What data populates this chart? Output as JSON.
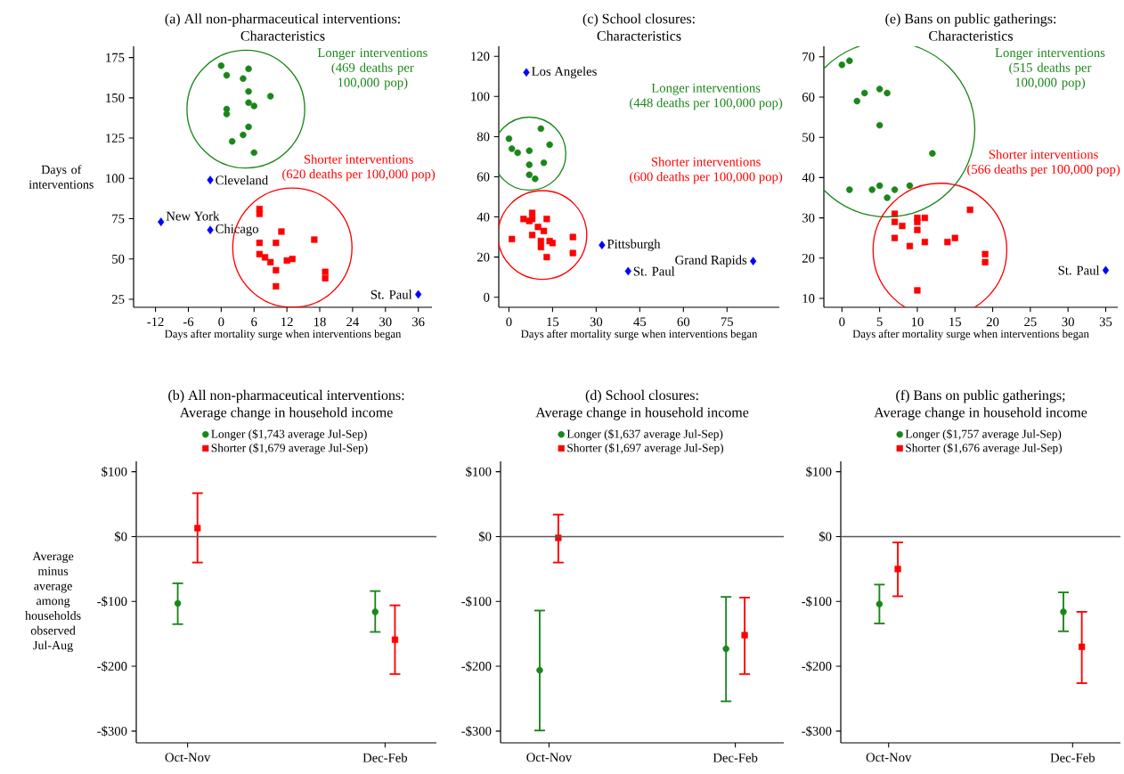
{
  "chart_data": [
    {
      "type": "scatter",
      "title": "(a) All non-pharmaceutical interventions:",
      "subtitle": "Characteristics",
      "xlabel": "Days after mortality surge when interventions began",
      "ylabel": "Days of interventions",
      "xlim": [
        -16,
        38.5
      ],
      "xticks": [
        -12,
        -6,
        0,
        6,
        12,
        18,
        24,
        30,
        36
      ],
      "ylim": [
        20,
        182
      ],
      "yticks": [
        25,
        50,
        75,
        100,
        125,
        150,
        175
      ],
      "series": [
        {
          "color": "#1a861a",
          "marker": "circle",
          "x": [
            0,
            5,
            1,
            4,
            5,
            9,
            5,
            6,
            1,
            1,
            5,
            4,
            2,
            6
          ],
          "values": [
            170,
            168,
            164,
            162,
            154,
            151,
            147,
            145,
            143,
            140,
            132,
            127,
            123,
            116
          ]
        },
        {
          "color": "#ff0000",
          "marker": "square",
          "x": [
            7,
            7,
            11,
            7,
            10,
            17,
            7,
            8,
            9,
            10,
            12,
            13,
            19,
            19,
            10
          ],
          "values": [
            81,
            78,
            67,
            60,
            60,
            62,
            53,
            51,
            48,
            43,
            49,
            50,
            42,
            38,
            33
          ]
        },
        {
          "color": "#0000ff",
          "marker": "diamond",
          "x": [
            -2,
            -11,
            -2,
            36
          ],
          "values": [
            99,
            73,
            68,
            28
          ]
        }
      ],
      "annotations": [
        "Longer interventions",
        "(469 deaths per 100,000 pop)",
        "Shorter interventions",
        "(620 deaths per 100,000 pop)",
        {
          "text": "Cleveland",
          "x": -2,
          "y": 99
        },
        {
          "text": "New York",
          "x": -11,
          "y": 73
        },
        {
          "text": "Chicago",
          "x": -2,
          "y": 68
        },
        {
          "text": "St. Paul",
          "x": 36,
          "y": 28
        }
      ]
    },
    {
      "type": "scatter",
      "title": "(c) School closures:",
      "subtitle": "Characteristics",
      "xlabel": "Days after mortality surge when interventions began",
      "xlim": [
        -3.5,
        93
      ],
      "xticks": [
        0,
        15,
        30,
        45,
        60,
        75
      ],
      "ylim": [
        -5,
        125
      ],
      "yticks": [
        0,
        20,
        40,
        60,
        80,
        100,
        120
      ],
      "series": [
        {
          "color": "#1a861a",
          "marker": "circle",
          "x": [
            11,
            0,
            1,
            3,
            7,
            14,
            7,
            12,
            7,
            9
          ],
          "values": [
            84,
            79,
            74,
            72,
            73,
            76,
            66,
            67,
            61,
            59
          ]
        },
        {
          "color": "#ff0000",
          "marker": "square",
          "x": [
            5,
            7,
            8,
            8,
            13,
            10,
            8,
            12,
            1,
            11,
            11,
            14,
            15,
            22,
            22,
            13
          ],
          "values": [
            39,
            38,
            42,
            39,
            39,
            35,
            31,
            33,
            29,
            28,
            25,
            28,
            27,
            30,
            22,
            20
          ]
        },
        {
          "color": "#0000ff",
          "marker": "diamond",
          "x": [
            6,
            32,
            41,
            84
          ],
          "values": [
            112,
            26,
            13,
            18
          ]
        }
      ],
      "annotations": [
        "Longer interventions",
        "(448 deaths per 100,000 pop)",
        "Shorter interventions",
        "(600 deaths per 100,000 pop)",
        {
          "text": "Los Angeles",
          "x": 6,
          "y": 112
        },
        {
          "text": "Pittsburgh",
          "x": 32,
          "y": 26
        },
        {
          "text": "St. Paul",
          "x": 41,
          "y": 13
        },
        {
          "text": "Grand Rapids",
          "x": 84,
          "y": 18
        }
      ]
    },
    {
      "type": "scatter",
      "title": "(e) Bans on public gatherings:",
      "subtitle": "Characteristics",
      "xlabel": "Days after mortality surge when interventions began",
      "xlim": [
        -2.4,
        36.6
      ],
      "xticks": [
        0,
        5,
        10,
        15,
        20,
        25,
        30,
        35
      ],
      "ylim": [
        7.8,
        72.6
      ],
      "yticks": [
        10,
        20,
        30,
        40,
        50,
        60,
        70
      ],
      "series": [
        {
          "color": "#1a861a",
          "marker": "circle",
          "x": [
            0,
            1,
            2,
            3,
            5,
            5,
            6,
            12,
            1,
            4,
            5,
            6,
            7,
            9
          ],
          "values": [
            68,
            69,
            59,
            61,
            62,
            53,
            61,
            46,
            37,
            37,
            38,
            35,
            37,
            38
          ]
        },
        {
          "color": "#ff0000",
          "marker": "square",
          "x": [
            7,
            7,
            7,
            8,
            9,
            10,
            10,
            10,
            10,
            11,
            11,
            14,
            15,
            17,
            19,
            19
          ],
          "values": [
            31,
            29,
            25,
            28,
            23,
            30,
            29,
            27,
            12,
            30,
            24,
            24,
            25,
            32,
            21,
            19
          ]
        },
        {
          "color": "#0000ff",
          "marker": "diamond",
          "x": [
            35
          ],
          "values": [
            17
          ]
        }
      ],
      "annotations": [
        "Longer interventions",
        "(515 deaths per 100,000 pop)",
        "Shorter interventions",
        "(566 deaths per 100,000 pop)",
        {
          "text": "St. Paul",
          "x": 35,
          "y": 17
        }
      ]
    },
    {
      "type": "scatter",
      "title": "(b) All non-pharmaceutical interventions:",
      "subtitle": "Average change in household income",
      "ylabel": "Average minus average among households observed Jul-Aug",
      "categories": [
        "Oct-Nov",
        "Dec-Feb"
      ],
      "ylim": [
        -318,
        116
      ],
      "yticks": [
        {
          "value": 100,
          "label": "$100"
        },
        {
          "value": 0,
          "label": "$0"
        },
        {
          "value": -100,
          "label": "-$100"
        },
        {
          "value": -200,
          "label": "-$200"
        },
        {
          "value": -300,
          "label": "-$300"
        }
      ],
      "legend": "top",
      "ref_lines": [
        {
          "axis": "y",
          "value": 0,
          "color": "#595959"
        }
      ],
      "series": [
        {
          "name": "Longer ($1,743 average Jul-Sep)",
          "color": "#1a861a",
          "marker": "circle",
          "values": [
            -103,
            -116
          ],
          "errors": [
            [
              -135,
              -72
            ],
            [
              -147,
              -84
            ]
          ]
        },
        {
          "name": "Shorter ($1,679 average Jul-Sep)",
          "color": "#ff0000",
          "marker": "square",
          "values": [
            13,
            -159
          ],
          "errors": [
            [
              -40,
              67
            ],
            [
              -212,
              -106
            ]
          ]
        }
      ]
    },
    {
      "type": "scatter",
      "title": "(d) School closures:",
      "subtitle": "Average change in household income",
      "categories": [
        "Oct-Nov",
        "Dec-Feb"
      ],
      "ylim": [
        -318,
        116
      ],
      "yticks": [
        {
          "value": 100,
          "label": "$100"
        },
        {
          "value": 0,
          "label": "$0"
        },
        {
          "value": -100,
          "label": "-$100"
        },
        {
          "value": -200,
          "label": "-$200"
        },
        {
          "value": -300,
          "label": "-$300"
        }
      ],
      "legend": "top",
      "ref_lines": [
        {
          "axis": "y",
          "value": 0,
          "color": "#595959"
        }
      ],
      "series": [
        {
          "name": "Longer ($1,637 average Jul-Sep)",
          "color": "#1a861a",
          "marker": "circle",
          "values": [
            -206,
            -173
          ],
          "errors": [
            [
              -299,
              -114
            ],
            [
              -254,
              -93
            ]
          ]
        },
        {
          "name": "Shorter ($1,697 average Jul-Sep)",
          "color": "#ff0000",
          "marker": "square",
          "values": [
            -2,
            -152
          ],
          "errors": [
            [
              -40,
              34
            ],
            [
              -212,
              -94
            ]
          ]
        }
      ]
    },
    {
      "type": "scatter",
      "title": "(f) Bans on public gatherings;",
      "subtitle": "Average change in household income",
      "categories": [
        "Oct-Nov",
        "Dec-Feb"
      ],
      "ylim": [
        -318,
        116
      ],
      "yticks": [
        {
          "value": 100,
          "label": "$100"
        },
        {
          "value": 0,
          "label": "$0"
        },
        {
          "value": -100,
          "label": "-$100"
        },
        {
          "value": -200,
          "label": "-$200"
        },
        {
          "value": -300,
          "label": "-$300"
        }
      ],
      "legend": "top",
      "ref_lines": [
        {
          "axis": "y",
          "value": 0,
          "color": "#595959"
        }
      ],
      "series": [
        {
          "name": "Longer ($1,757 average Jul-Sep)",
          "color": "#1a861a",
          "marker": "circle",
          "values": [
            -104,
            -116
          ],
          "errors": [
            [
              -134,
              -74
            ],
            [
              -146,
              -86
            ]
          ]
        },
        {
          "name": "Shorter ($1,676 average Jul-Sep)",
          "color": "#ff0000",
          "marker": "square",
          "values": [
            -50,
            -170
          ],
          "errors": [
            [
              -92,
              -9
            ],
            [
              -226,
              -116
            ]
          ]
        }
      ]
    }
  ]
}
